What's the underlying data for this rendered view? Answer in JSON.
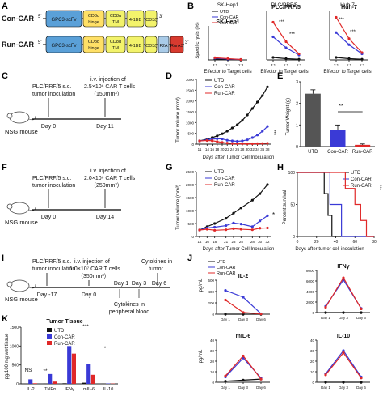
{
  "panel_labels": {
    "A": "A",
    "B": "B",
    "C": "C",
    "D": "D",
    "E": "E",
    "F": "F",
    "G": "G",
    "H": "H",
    "I": "I",
    "J": "J",
    "K": "K"
  },
  "colors": {
    "utd": "#111111",
    "con": "#3a3ad6",
    "run": "#e02828",
    "gpc3": "#5aa0d8",
    "hinge": "#ffe066",
    "mod4": "#f3f36b",
    "f2a": "#a9cbe8",
    "runx3": "#d83a2f",
    "greybar": "#555555"
  },
  "construct": {
    "con_label": "Con-CAR",
    "run_label": "Run-CAR",
    "five": "5'",
    "three": "3'",
    "gpc3": "GPC3-scFv",
    "cd8_hinge_1": "CD8α",
    "cd8_hinge_2": "hinge",
    "cd8_tm_1": "CD8α",
    "cd8_tm_2": "TM",
    "bb": "4-1BB",
    "cd3": "CD3ζ",
    "f2a": "F2A",
    "runx3": "Runx3"
  },
  "panel_b": {
    "ylabel": "Specific lysis (%)",
    "xlabel": "Effector to Target cells",
    "titles": [
      "SK-Hep1",
      "PLC/PRF/5",
      "Huh-7"
    ],
    "ticks": [
      "3:1",
      "1:1",
      "1:3"
    ],
    "legend": [
      "UTD",
      "Con-CAR",
      "Run-CAR"
    ],
    "sig": "***"
  },
  "panel_c": {
    "line1": "PLC/PRF/5  s.c.",
    "line2": "tumor inoculation",
    "mouse": "NSG mouse",
    "injection1": "i.v. injection of",
    "injection2": "2.5×10⁶ CAR T cells",
    "injection3": "（150mm³）",
    "day0": "Day 0",
    "day11": "Day 11"
  },
  "panel_d": {
    "ylabel": "Tumor volume (mm³)",
    "xlabel": "Days after Tumor Cell Inoculation",
    "sig": "***",
    "legend": [
      "UTD",
      "Con-CAR",
      "Run-CAR"
    ]
  },
  "panel_e": {
    "ylabel": "Tumor Weight (g)",
    "sig": "**",
    "categories": [
      "UTD",
      "Con-CAR",
      "Run-CAR"
    ]
  },
  "panel_f": {
    "line1": "PLC/PRF/5  s.c.",
    "line2": "tumor inoculation",
    "mouse": "NSG mouse",
    "injection1": "i.v. injection of",
    "injection2": "2.0×10⁶ CAR T cells",
    "injection3": "（250mm³）",
    "day0": "Day 0",
    "day14": "Day 14"
  },
  "panel_g": {
    "ylabel": "Tumor volume (mm³)",
    "xlabel": "Days after Tumor Cell Inoculation",
    "sig": "*",
    "legend": [
      "UTD",
      "Con-CAR",
      "Run-CAR"
    ]
  },
  "panel_h": {
    "ylabel": "Percent survival",
    "xlabel": "Days after tumor cell inoculation",
    "sig": "***",
    "legend": [
      "UTD",
      "Con-CAR",
      "Run-CAR"
    ]
  },
  "panel_i": {
    "line1": "PLC/PRF/5  s.c.",
    "line2": "tumor inoculation",
    "mouse": "NSG mouse",
    "injection1": "i.v. injection of",
    "injection2": "1.0×10⁷ CAR T cells",
    "injection3": "（350mm³）",
    "cytokines": "Cytokines in",
    "cytokines2": "tumor",
    "cyto_pb1": "Cytokines in",
    "cyto_pb2": "peripheral blood",
    "days": [
      "Day -17",
      "Day 0",
      "Day 1",
      "Day 3",
      "Day 6"
    ]
  },
  "panel_j": {
    "ylabel": "pg/mL",
    "legend": [
      "UTD",
      "Con-CAR",
      "Run-CAR"
    ]
  },
  "panel_k": {
    "title": "Tumor Tissue",
    "ylabel": "pg/100 mg wet tissue",
    "legend": [
      "UTD",
      "Con-CAR",
      "Run-CAR"
    ],
    "sig": [
      "NS",
      "**",
      "***",
      "*"
    ]
  },
  "chart_data": [
    {
      "id": "B1",
      "type": "line",
      "title": "SK-Hep1",
      "x": [
        "3:1",
        "1:1",
        "1:3"
      ],
      "ylim": [
        0,
        80
      ],
      "series": [
        {
          "name": "UTD",
          "values": [
            2,
            1,
            0
          ]
        },
        {
          "name": "Con-CAR",
          "values": [
            4,
            2,
            1
          ]
        },
        {
          "name": "Run-CAR",
          "values": [
            5,
            3,
            1
          ]
        }
      ]
    },
    {
      "id": "B2",
      "type": "line",
      "title": "PLC/PRF/5",
      "x": [
        "3:1",
        "1:1",
        "1:3"
      ],
      "ylim": [
        0,
        80
      ],
      "series": [
        {
          "name": "UTD",
          "values": [
            4,
            2,
            1
          ]
        },
        {
          "name": "Con-CAR",
          "values": [
            38,
            20,
            8
          ]
        },
        {
          "name": "Run-CAR",
          "values": [
            62,
            30,
            10
          ]
        }
      ]
    },
    {
      "id": "B3",
      "type": "line",
      "title": "Huh-7",
      "x": [
        "3:1",
        "1:1",
        "1:3"
      ],
      "ylim": [
        0,
        80
      ],
      "series": [
        {
          "name": "UTD",
          "values": [
            4,
            2,
            1
          ]
        },
        {
          "name": "Con-CAR",
          "values": [
            45,
            25,
            10
          ]
        },
        {
          "name": "Run-CAR",
          "values": [
            70,
            35,
            12
          ]
        }
      ]
    },
    {
      "id": "D",
      "type": "line",
      "xlabel": "Days after Tumor Cell Inoculation",
      "ylabel": "Tumor volume (mm³)",
      "ylim": [
        0,
        3000
      ],
      "yticks": [
        0,
        500,
        1000,
        1500,
        2000,
        2500,
        3000
      ],
      "x": [
        11,
        14,
        16,
        18,
        20,
        22,
        24,
        26,
        28,
        30,
        32,
        34,
        36,
        38
      ],
      "series": [
        {
          "name": "UTD",
          "values": [
            150,
            230,
            300,
            380,
            480,
            600,
            750,
            900,
            1100,
            1350,
            1650,
            1950,
            2250,
            2650
          ]
        },
        {
          "name": "Con-CAR",
          "values": [
            150,
            200,
            230,
            250,
            240,
            180,
            150,
            130,
            150,
            200,
            300,
            420,
            600,
            820
          ]
        },
        {
          "name": "Run-CAR",
          "values": [
            150,
            170,
            160,
            120,
            80,
            50,
            30,
            20,
            20,
            20,
            20,
            25,
            30,
            40
          ]
        }
      ]
    },
    {
      "id": "E",
      "type": "bar",
      "ylabel": "Tumor Weight (g)",
      "ylim": [
        0,
        3
      ],
      "yticks": [
        0,
        1,
        2,
        3
      ],
      "categories": [
        "UTD",
        "Con-CAR",
        "Run-CAR"
      ],
      "values": [
        2.45,
        0.75,
        0.08
      ],
      "errors": [
        0.18,
        0.25,
        0.04
      ]
    },
    {
      "id": "G",
      "type": "line",
      "xlabel": "Days after Tumor Cell Inoculation",
      "ylabel": "Tumor volume (mm³)",
      "ylim": [
        0,
        2500
      ],
      "yticks": [
        0,
        500,
        1000,
        1500,
        2000,
        2500
      ],
      "x": [
        14,
        16,
        18,
        21,
        23,
        25,
        28,
        30,
        32
      ],
      "series": [
        {
          "name": "UTD",
          "values": [
            250,
            380,
            500,
            700,
            900,
            1100,
            1400,
            1650,
            2000
          ]
        },
        {
          "name": "Con-CAR",
          "values": [
            250,
            330,
            360,
            420,
            520,
            480,
            380,
            600,
            800
          ]
        },
        {
          "name": "Run-CAR",
          "values": [
            250,
            280,
            240,
            260,
            300,
            280,
            260,
            320,
            330
          ]
        }
      ]
    },
    {
      "id": "H",
      "type": "line",
      "xlabel": "Days after tumor cell inoculation",
      "ylabel": "Percent survival",
      "ylim": [
        0,
        100
      ],
      "xlim": [
        0,
        80
      ],
      "yticks": [
        0,
        50,
        100
      ],
      "xticks": [
        0,
        20,
        40,
        60,
        80
      ],
      "series": [
        {
          "name": "UTD",
          "steps": [
            [
              0,
              100
            ],
            [
              28,
              100
            ],
            [
              28,
              67
            ],
            [
              32,
              67
            ],
            [
              32,
              33
            ],
            [
              36,
              33
            ],
            [
              36,
              0
            ],
            [
              80,
              0
            ]
          ]
        },
        {
          "name": "Con-CAR",
          "steps": [
            [
              0,
              100
            ],
            [
              34,
              100
            ],
            [
              34,
              50
            ],
            [
              46,
              50
            ],
            [
              46,
              0
            ],
            [
              80,
              0
            ]
          ]
        },
        {
          "name": "Run-CAR",
          "steps": [
            [
              0,
              100
            ],
            [
              50,
              100
            ],
            [
              50,
              75
            ],
            [
              60,
              75
            ],
            [
              60,
              50
            ],
            [
              66,
              50
            ],
            [
              66,
              25
            ],
            [
              72,
              25
            ],
            [
              72,
              0
            ],
            [
              80,
              0
            ]
          ]
        }
      ]
    },
    {
      "id": "J_IL2",
      "type": "line",
      "title": "IL-2",
      "x": [
        "Day 1",
        "Day 3",
        "Day 6"
      ],
      "ylim": [
        0,
        600
      ],
      "yticks": [
        0,
        200,
        400,
        600
      ],
      "series": [
        {
          "name": "UTD",
          "values": [
            0,
            0,
            0
          ]
        },
        {
          "name": "Con-CAR",
          "values": [
            420,
            300,
            8
          ]
        },
        {
          "name": "Run-CAR",
          "values": [
            250,
            30,
            5
          ]
        }
      ]
    },
    {
      "id": "J_IFNg",
      "type": "line",
      "title": "IFNγ",
      "x": [
        "Day 1",
        "Day 3",
        "Day 6"
      ],
      "ylim": [
        0,
        8000
      ],
      "yticks": [
        0,
        2000,
        4000,
        6000,
        8000
      ],
      "series": [
        {
          "name": "UTD",
          "values": [
            0,
            0,
            0
          ]
        },
        {
          "name": "Con-CAR",
          "values": [
            1200,
            6200,
            800
          ]
        },
        {
          "name": "Run-CAR",
          "values": [
            1000,
            6600,
            700
          ]
        }
      ]
    },
    {
      "id": "J_mIL6",
      "type": "line",
      "title": "mIL-6",
      "x": [
        "Day 1",
        "Day 3",
        "Day 6"
      ],
      "ylim": [
        0,
        40
      ],
      "yticks": [
        0,
        10,
        20,
        30,
        40
      ],
      "series": [
        {
          "name": "UTD",
          "values": [
            1,
            2,
            3
          ]
        },
        {
          "name": "Con-CAR",
          "values": [
            5,
            23,
            4
          ]
        },
        {
          "name": "Run-CAR",
          "values": [
            6,
            25,
            3
          ]
        }
      ]
    },
    {
      "id": "J_IL10",
      "type": "line",
      "title": "IL-10",
      "x": [
        "Day 1",
        "Day 3",
        "Day 6"
      ],
      "ylim": [
        0,
        40
      ],
      "yticks": [
        0,
        10,
        20,
        30,
        40
      ],
      "series": [
        {
          "name": "UTD",
          "values": [
            0,
            0,
            0
          ]
        },
        {
          "name": "Con-CAR",
          "values": [
            8,
            30,
            5
          ]
        },
        {
          "name": "Run-CAR",
          "values": [
            7,
            28,
            4
          ]
        }
      ]
    },
    {
      "id": "K",
      "type": "bar",
      "title": "Tumor Tissue",
      "ylabel": "pg/100 mg wet tissue",
      "ylim": [
        0,
        1500
      ],
      "yticks": [
        0,
        500,
        1000,
        1500
      ],
      "categories": [
        "IL-2",
        "TNFα",
        "IFNγ",
        "mIL-6",
        "IL-10"
      ],
      "series": [
        {
          "name": "UTD",
          "values": [
            5,
            10,
            15,
            30,
            5
          ]
        },
        {
          "name": "Con-CAR",
          "values": [
            120,
            260,
            1000,
            520,
            10
          ]
        },
        {
          "name": "Run-CAR",
          "values": [
            15,
            60,
            800,
            240,
            8
          ]
        }
      ]
    }
  ]
}
